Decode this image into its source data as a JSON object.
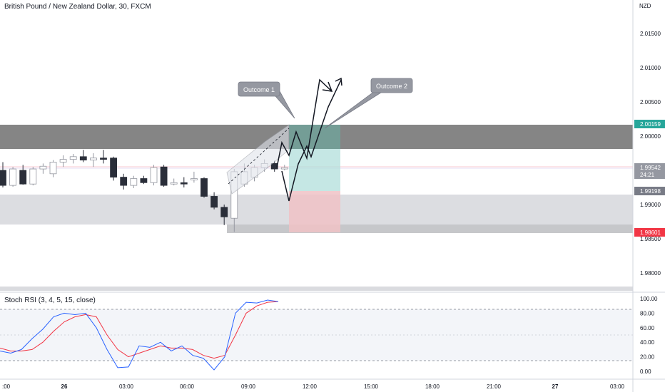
{
  "header": {
    "title": "British Pound / New Zealand Dollar, 30, FXCM",
    "currency": "NZD"
  },
  "indicator": {
    "title": "Stoch RSI (3, 4, 5, 15, close)"
  },
  "annotations": {
    "callout1": "Outcome 1",
    "callout2": "Outcome 2"
  },
  "price_badges": {
    "top": "2.00159",
    "current": "1.99542",
    "countdown": "24:21",
    "mid": "1.99198",
    "stop": "1.98601"
  },
  "colors": {
    "bull_candle": "#ffffff",
    "bear_candle": "#2a2e39",
    "zone_dark": "#6b6b6b",
    "zone_light": "#dadbdf",
    "profit_zone": "#b2dfdb",
    "loss_zone": "#f0c2c6",
    "stoch_k": "#2962ff",
    "stoch_d": "#f23645",
    "badge_top": "#26a69a",
    "badge_stop": "#f23645",
    "badge_neutral": "#787b86"
  },
  "chart_data": {
    "type": "candlestick",
    "price_axis": {
      "ticks": [
        "2.01500",
        "2.01000",
        "2.00500",
        "2.00000",
        "1.99500",
        "1.99000",
        "1.98500",
        "1.98000"
      ],
      "range": [
        1.976,
        2.0205
      ]
    },
    "time_axis": {
      "ticks": [
        ":00",
        "26",
        "03:00",
        "06:00",
        "09:00",
        "12:00",
        "15:00",
        "18:00",
        "21:00",
        "27",
        "03:00"
      ]
    },
    "candles": [
      {
        "o": 1.995,
        "h": 1.9962,
        "l": 1.9925,
        "c": 1.9928
      },
      {
        "o": 1.9928,
        "h": 1.9955,
        "l": 1.9926,
        "c": 1.9952
      },
      {
        "o": 1.995,
        "h": 1.9958,
        "l": 1.9929,
        "c": 1.993
      },
      {
        "o": 1.993,
        "h": 1.9955,
        "l": 1.9928,
        "c": 1.9952
      },
      {
        "o": 1.9952,
        "h": 1.996,
        "l": 1.9945,
        "c": 1.9956
      },
      {
        "o": 1.9945,
        "h": 1.9965,
        "l": 1.994,
        "c": 1.9962
      },
      {
        "o": 1.9962,
        "h": 1.9972,
        "l": 1.9955,
        "c": 1.9966
      },
      {
        "o": 1.9966,
        "h": 1.9974,
        "l": 1.996,
        "c": 1.997
      },
      {
        "o": 1.997,
        "h": 1.998,
        "l": 1.9962,
        "c": 1.9965
      },
      {
        "o": 1.9965,
        "h": 1.9975,
        "l": 1.9955,
        "c": 1.9968
      },
      {
        "o": 1.9968,
        "h": 1.998,
        "l": 1.996,
        "c": 1.9966
      },
      {
        "o": 1.9968,
        "h": 1.997,
        "l": 1.9935,
        "c": 1.994
      },
      {
        "o": 1.994,
        "h": 1.9945,
        "l": 1.9922,
        "c": 1.9928
      },
      {
        "o": 1.9928,
        "h": 1.9942,
        "l": 1.9924,
        "c": 1.9938
      },
      {
        "o": 1.9938,
        "h": 1.9942,
        "l": 1.993,
        "c": 1.9932
      },
      {
        "o": 1.9932,
        "h": 1.9958,
        "l": 1.9928,
        "c": 1.9954
      },
      {
        "o": 1.9955,
        "h": 1.9958,
        "l": 1.9926,
        "c": 1.9928
      },
      {
        "o": 1.993,
        "h": 1.9938,
        "l": 1.9928,
        "c": 1.9932
      },
      {
        "o": 1.9932,
        "h": 1.994,
        "l": 1.9925,
        "c": 1.993
      },
      {
        "o": 1.9936,
        "h": 1.9948,
        "l": 1.9932,
        "c": 1.9938
      },
      {
        "o": 1.9938,
        "h": 1.994,
        "l": 1.991,
        "c": 1.9912
      },
      {
        "o": 1.9912,
        "h": 1.9918,
        "l": 1.9893,
        "c": 1.9896
      },
      {
        "o": 1.9896,
        "h": 1.99,
        "l": 1.987,
        "c": 1.9882
      },
      {
        "o": 1.988,
        "h": 1.9952,
        "l": 1.986,
        "c": 1.9948
      },
      {
        "o": 1.993,
        "h": 1.996,
        "l": 1.9926,
        "c": 1.9948
      },
      {
        "o": 1.994,
        "h": 1.9958,
        "l": 1.9934,
        "c": 1.9954
      },
      {
        "o": 1.9954,
        "h": 1.9966,
        "l": 1.9948,
        "c": 1.996
      },
      {
        "o": 1.996,
        "h": 1.9964,
        "l": 1.9948,
        "c": 1.9952
      },
      {
        "o": 1.9952,
        "h": 1.9958,
        "l": 1.995,
        "c": 1.9954
      }
    ],
    "zones": {
      "resistance": [
        1.9983,
        2.0019
      ],
      "support": [
        1.9872,
        1.9918
      ],
      "lower": [
        1.985,
        1.9874
      ]
    },
    "position": {
      "entry": 1.992,
      "target": 2.0019,
      "stop": 1.9859
    },
    "stoch": {
      "ticks": [
        "100.00",
        "80.00",
        "60.00",
        "40.00",
        "20.00",
        "0.00"
      ],
      "levels": [
        80,
        20
      ],
      "k": [
        28,
        25,
        30,
        45,
        58,
        75,
        80,
        78,
        80,
        60,
        30,
        5,
        6,
        35,
        33,
        40,
        28,
        35,
        22,
        18,
        2,
        20,
        80,
        95,
        94,
        98,
        96
      ],
      "d": [
        32,
        28,
        28,
        30,
        40,
        55,
        68,
        75,
        78,
        75,
        50,
        30,
        20,
        25,
        30,
        35,
        32,
        32,
        30,
        22,
        18,
        22,
        50,
        80,
        90,
        95,
        96
      ]
    }
  }
}
